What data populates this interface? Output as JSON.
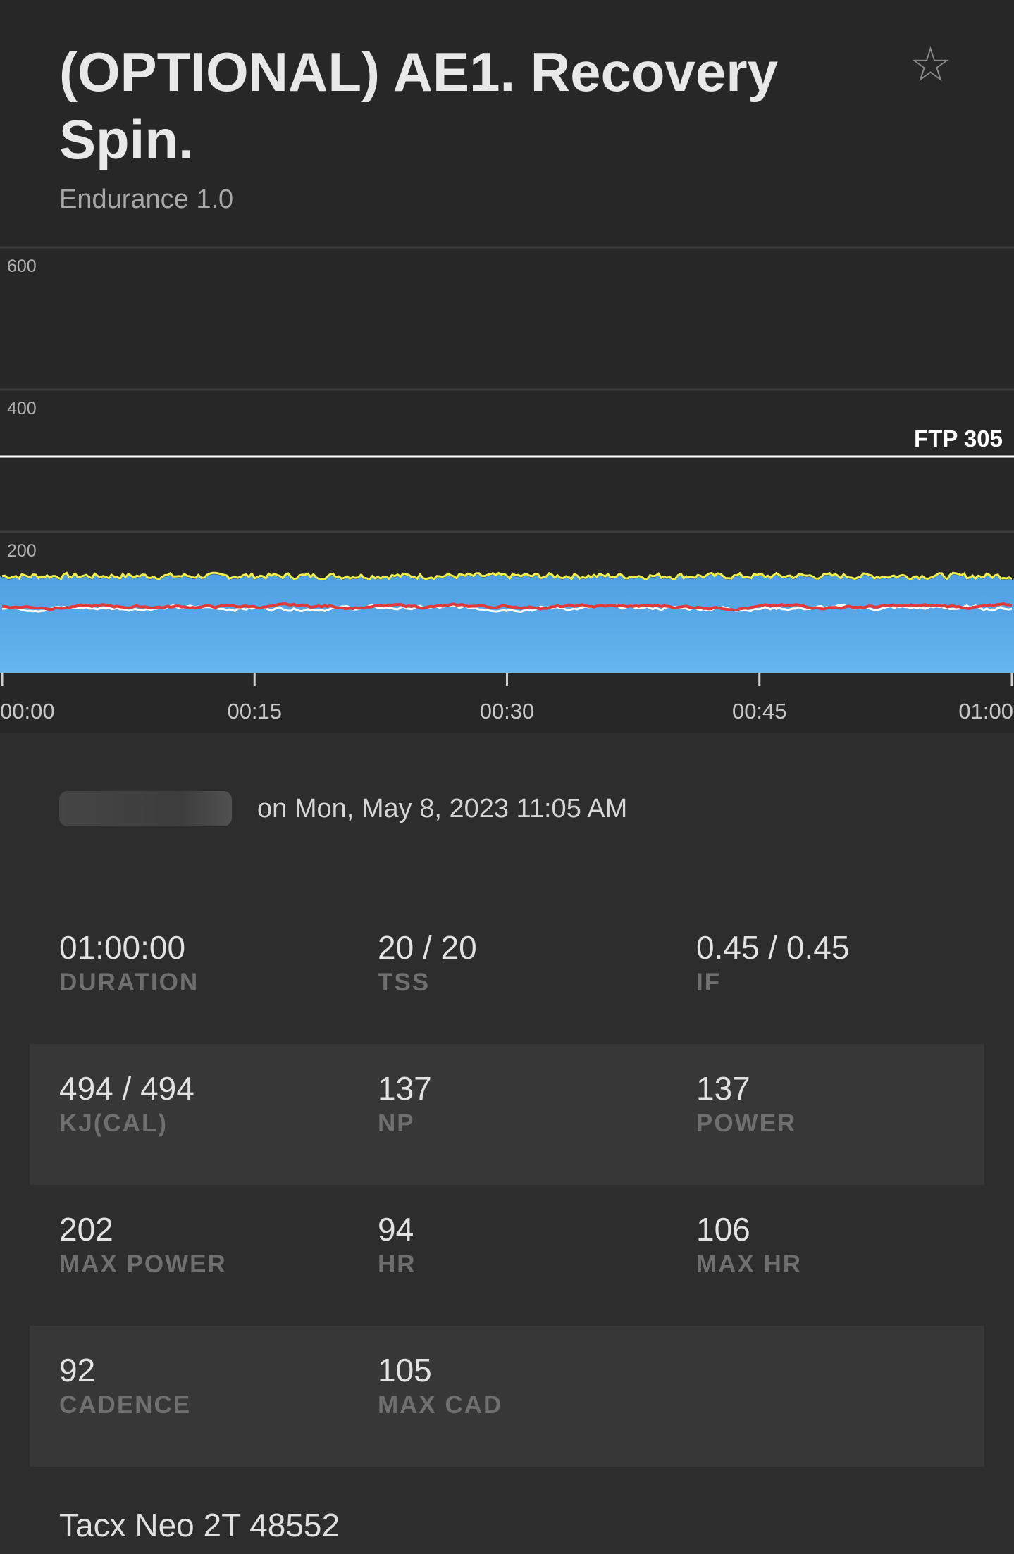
{
  "header": {
    "title": "(OPTIONAL) AE1. Recovery Spin.",
    "subtitle": "Endurance 1.0",
    "favorite_icon": "star-outline-icon"
  },
  "chart_data": {
    "type": "area",
    "x_ticks": [
      "00:00",
      "00:15",
      "00:30",
      "00:45",
      "01:00"
    ],
    "y_ticks": [
      "600",
      "400",
      "200"
    ],
    "ylim": [
      0,
      600
    ],
    "xlim_minutes": [
      0,
      60
    ],
    "ftp_label": "FTP 305",
    "ftp_value": 305,
    "series": [
      {
        "color": "#5aa8e8",
        "kind": "area",
        "level": 137
      },
      {
        "color": "#f0f04a",
        "kind": "line",
        "level": 137
      },
      {
        "color": "#ffffff",
        "kind": "line",
        "level": 92
      },
      {
        "color": "#e03a3a",
        "kind": "line",
        "level": 94
      }
    ]
  },
  "session": {
    "date_text": "on Mon, May 8, 2023 11:05 AM"
  },
  "stats": {
    "rows": [
      [
        {
          "value": "01:00:00",
          "label": "DURATION"
        },
        {
          "value": "20 / 20",
          "label": "TSS"
        },
        {
          "value": "0.45 / 0.45",
          "label": "IF"
        }
      ],
      [
        {
          "value": "494 / 494",
          "label": "KJ(CAL)"
        },
        {
          "value": "137",
          "label": "NP"
        },
        {
          "value": "137",
          "label": "POWER"
        }
      ],
      [
        {
          "value": "202",
          "label": "MAX POWER"
        },
        {
          "value": "94",
          "label": "HR"
        },
        {
          "value": "106",
          "label": "MAX HR"
        }
      ],
      [
        {
          "value": "92",
          "label": "CADENCE"
        },
        {
          "value": "105",
          "label": "MAX CAD"
        }
      ]
    ]
  },
  "device": {
    "name": "Tacx Neo 2T 48552"
  }
}
